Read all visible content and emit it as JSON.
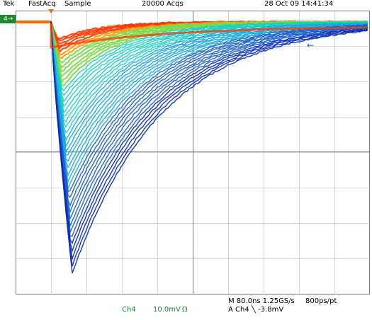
{
  "topbar": {
    "brand": "Tek",
    "mode": "FastAcq",
    "acq_type": "Sample",
    "acqs": "20000 Acqs",
    "datetime": "28 Oct 09 14:41:34"
  },
  "channel_marker": "4",
  "channel_marker_glyph": "→",
  "cursor_arrow_glyph": "←",
  "right_marker_glyph": "←",
  "footer": {
    "ch_label": "Ch4",
    "ch_scale": "10.0mV",
    "ch_coupling": "Ω",
    "timebase": "M 80.0ns 1.25GS/s",
    "resolution": "800ps/pt",
    "trigger": "A  Ch4  ╲  -3.8mV"
  },
  "colors": {
    "ch_green": "#1a8a2a",
    "trigger_orange": "#f07a00",
    "persistence_palette": [
      "#0a2dbd",
      "#1b61c8",
      "#1aa9e0",
      "#17d0c0",
      "#7cd84a",
      "#e6e020",
      "#ff9a00",
      "#ff3a00"
    ]
  },
  "icons": {
    "trigger_marker": "trigger-position-icon",
    "channel_marker": "channel-4-marker-icon",
    "cursor": "cursor-arrow-icon"
  }
}
